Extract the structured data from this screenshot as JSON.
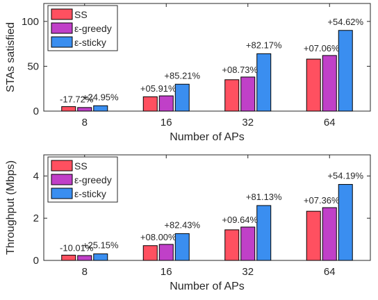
{
  "chart_data": [
    {
      "type": "bar",
      "categories": [
        "8",
        "16",
        "32",
        "64"
      ],
      "series": [
        {
          "name": "SS",
          "values": [
            5,
            16,
            35,
            58
          ]
        },
        {
          "name": "ε-greedy",
          "values": [
            4,
            17,
            38,
            62
          ]
        },
        {
          "name": "ε-sticky",
          "values": [
            6,
            30,
            64,
            90
          ]
        }
      ],
      "annotations": [
        {
          "low": "-17.72%",
          "high": "+24.95%"
        },
        {
          "low": "+05.91%",
          "high": "+85.21%"
        },
        {
          "low": "+08.73%",
          "high": "+82.17%"
        },
        {
          "low": "+07.06%",
          "high": "+54.62%"
        }
      ],
      "xlabel": "Number of APs",
      "ylabel": "STAs satisfied",
      "ylim": [
        0,
        120
      ],
      "yticks": [
        0,
        50,
        100
      ],
      "legend_position": "top-left",
      "grid": false
    },
    {
      "type": "bar",
      "categories": [
        "8",
        "16",
        "32",
        "64"
      ],
      "series": [
        {
          "name": "SS",
          "values": [
            0.25,
            0.7,
            1.45,
            2.33
          ]
        },
        {
          "name": "ε-greedy",
          "values": [
            0.23,
            0.76,
            1.58,
            2.5
          ]
        },
        {
          "name": "ε-sticky",
          "values": [
            0.31,
            1.27,
            2.6,
            3.6
          ]
        }
      ],
      "annotations": [
        {
          "low": "-10.01%",
          "high": "+25.15%"
        },
        {
          "low": "+08.00%",
          "high": "+82.43%"
        },
        {
          "low": "+09.64%",
          "high": "+81.13%"
        },
        {
          "low": "+07.36%",
          "high": "+54.19%"
        }
      ],
      "xlabel": "Number of APs",
      "ylabel": "Throughput (Mbps)",
      "ylim": [
        0,
        5
      ],
      "yticks": [
        0,
        2,
        4
      ],
      "legend_position": "top-left",
      "grid": false
    }
  ],
  "colors": [
    "#FF5060",
    "#C040C8",
    "#3A8EF0"
  ]
}
